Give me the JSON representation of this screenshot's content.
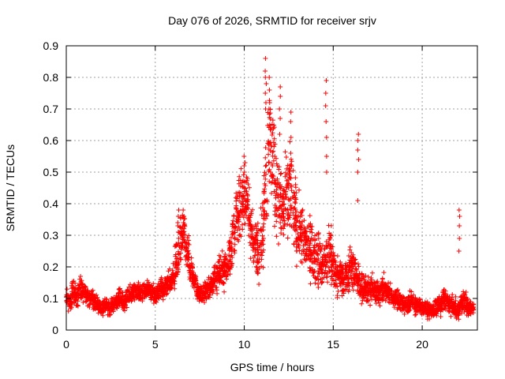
{
  "chart_data": {
    "type": "scatter",
    "title": "Day 076 of 2026, SRMTID for receiver srjv",
    "xlabel": "GPS time / hours",
    "ylabel": "SRMTID / TECUs",
    "xlim": [
      0,
      23.1
    ],
    "ylim": [
      0,
      0.9
    ],
    "xticks": [
      0,
      5,
      10,
      15,
      20
    ],
    "yticks": [
      0,
      0.1,
      0.2,
      0.3,
      0.4,
      0.5,
      0.6,
      0.7,
      0.8,
      0.9
    ],
    "xtick_labels": [
      "0",
      "5",
      "10",
      "15",
      "20"
    ],
    "ytick_labels": [
      "0",
      "0.1",
      "0.2",
      "0.3",
      "0.4",
      "0.5",
      "0.6",
      "0.7",
      "0.8",
      "0.9"
    ],
    "grid": true,
    "marker": "+",
    "color": "#ff0000",
    "series": [
      {
        "name": "srjv",
        "x": [
          0.0,
          0.2,
          0.4,
          0.6,
          0.8,
          1.0,
          1.2,
          1.4,
          1.6,
          1.8,
          2.0,
          2.2,
          2.4,
          2.6,
          2.8,
          3.0,
          3.2,
          3.4,
          3.6,
          3.8,
          4.0,
          4.2,
          4.4,
          4.6,
          4.8,
          5.0,
          5.2,
          5.4,
          5.6,
          5.8,
          6.0,
          6.2,
          6.4,
          6.6,
          6.8,
          7.0,
          7.2,
          7.4,
          7.6,
          7.8,
          8.0,
          8.2,
          8.4,
          8.6,
          8.8,
          9.0,
          9.2,
          9.4,
          9.6,
          9.8,
          10.0,
          10.2,
          10.4,
          10.6,
          10.8,
          11.0,
          11.2,
          11.4,
          11.6,
          11.8,
          12.0,
          12.2,
          12.4,
          12.6,
          12.8,
          13.0,
          13.2,
          13.4,
          13.6,
          13.8,
          14.0,
          14.2,
          14.4,
          14.6,
          14.8,
          15.0,
          15.2,
          15.4,
          15.6,
          15.8,
          16.0,
          16.2,
          16.4,
          16.6,
          16.8,
          17.0,
          17.2,
          17.4,
          17.6,
          17.8,
          18.0,
          18.2,
          18.4,
          18.6,
          18.8,
          19.0,
          19.2,
          19.4,
          19.6,
          19.8,
          20.0,
          20.2,
          20.4,
          20.6,
          20.8,
          21.0,
          21.2,
          21.4,
          21.6,
          21.8,
          22.0,
          22.2,
          22.4,
          22.6,
          22.8
        ],
        "y": [
          0.1,
          0.09,
          0.12,
          0.11,
          0.13,
          0.12,
          0.11,
          0.1,
          0.09,
          0.08,
          0.07,
          0.08,
          0.07,
          0.08,
          0.09,
          0.1,
          0.09,
          0.1,
          0.11,
          0.12,
          0.12,
          0.11,
          0.12,
          0.13,
          0.12,
          0.11,
          0.12,
          0.13,
          0.14,
          0.15,
          0.16,
          0.22,
          0.28,
          0.3,
          0.25,
          0.2,
          0.16,
          0.12,
          0.11,
          0.12,
          0.13,
          0.15,
          0.17,
          0.18,
          0.19,
          0.2,
          0.24,
          0.3,
          0.36,
          0.4,
          0.42,
          0.38,
          0.32,
          0.27,
          0.25,
          0.3,
          0.45,
          0.62,
          0.55,
          0.45,
          0.4,
          0.38,
          0.42,
          0.44,
          0.38,
          0.32,
          0.3,
          0.28,
          0.26,
          0.25,
          0.24,
          0.22,
          0.2,
          0.22,
          0.25,
          0.2,
          0.18,
          0.17,
          0.16,
          0.17,
          0.2,
          0.18,
          0.16,
          0.14,
          0.13,
          0.12,
          0.13,
          0.12,
          0.12,
          0.13,
          0.12,
          0.11,
          0.1,
          0.1,
          0.09,
          0.08,
          0.08,
          0.09,
          0.08,
          0.08,
          0.07,
          0.07,
          0.06,
          0.06,
          0.07,
          0.08,
          0.1,
          0.09,
          0.08,
          0.07,
          0.06,
          0.08,
          0.09,
          0.07,
          0.07
        ],
        "spread": [
          0.04,
          0.04,
          0.05,
          0.05,
          0.05,
          0.04,
          0.04,
          0.04,
          0.04,
          0.03,
          0.03,
          0.03,
          0.03,
          0.03,
          0.03,
          0.04,
          0.04,
          0.04,
          0.04,
          0.04,
          0.04,
          0.04,
          0.04,
          0.04,
          0.04,
          0.04,
          0.04,
          0.05,
          0.05,
          0.05,
          0.06,
          0.1,
          0.1,
          0.09,
          0.08,
          0.07,
          0.05,
          0.04,
          0.04,
          0.05,
          0.05,
          0.06,
          0.07,
          0.07,
          0.08,
          0.08,
          0.1,
          0.12,
          0.14,
          0.14,
          0.14,
          0.14,
          0.13,
          0.12,
          0.12,
          0.14,
          0.2,
          0.22,
          0.22,
          0.2,
          0.18,
          0.17,
          0.18,
          0.18,
          0.17,
          0.15,
          0.14,
          0.14,
          0.13,
          0.13,
          0.13,
          0.12,
          0.11,
          0.12,
          0.15,
          0.1,
          0.09,
          0.08,
          0.08,
          0.08,
          0.1,
          0.09,
          0.08,
          0.07,
          0.06,
          0.06,
          0.06,
          0.06,
          0.06,
          0.06,
          0.05,
          0.05,
          0.04,
          0.04,
          0.04,
          0.04,
          0.04,
          0.04,
          0.04,
          0.04,
          0.03,
          0.03,
          0.03,
          0.03,
          0.04,
          0.04,
          0.05,
          0.05,
          0.04,
          0.04,
          0.04,
          0.04,
          0.05,
          0.04,
          0.03
        ],
        "spikes": [
          {
            "x": 6.3,
            "y_values": [
              0.31,
              0.34,
              0.36,
              0.38,
              0.33
            ]
          },
          {
            "x": 6.6,
            "y_values": [
              0.34,
              0.36,
              0.38,
              0.31
            ]
          },
          {
            "x": 10.0,
            "y_values": [
              0.47,
              0.5,
              0.52,
              0.55,
              0.45
            ]
          },
          {
            "x": 11.2,
            "y_values": [
              0.7,
              0.75,
              0.8,
              0.82,
              0.86,
              0.78,
              0.72
            ]
          },
          {
            "x": 11.4,
            "y_values": [
              0.65,
              0.7,
              0.76,
              0.8
            ]
          },
          {
            "x": 12.0,
            "y_values": [
              0.62,
              0.67,
              0.7,
              0.74,
              0.77
            ]
          },
          {
            "x": 12.6,
            "y_values": [
              0.56,
              0.61,
              0.66,
              0.69
            ]
          },
          {
            "x": 14.6,
            "y_values": [
              0.5,
              0.55,
              0.61,
              0.66,
              0.71,
              0.75,
              0.79
            ]
          },
          {
            "x": 16.4,
            "y_values": [
              0.41,
              0.5,
              0.54,
              0.57,
              0.6,
              0.62
            ]
          },
          {
            "x": 22.1,
            "y_values": [
              0.25,
              0.29,
              0.33,
              0.36,
              0.38
            ]
          }
        ]
      }
    ]
  }
}
